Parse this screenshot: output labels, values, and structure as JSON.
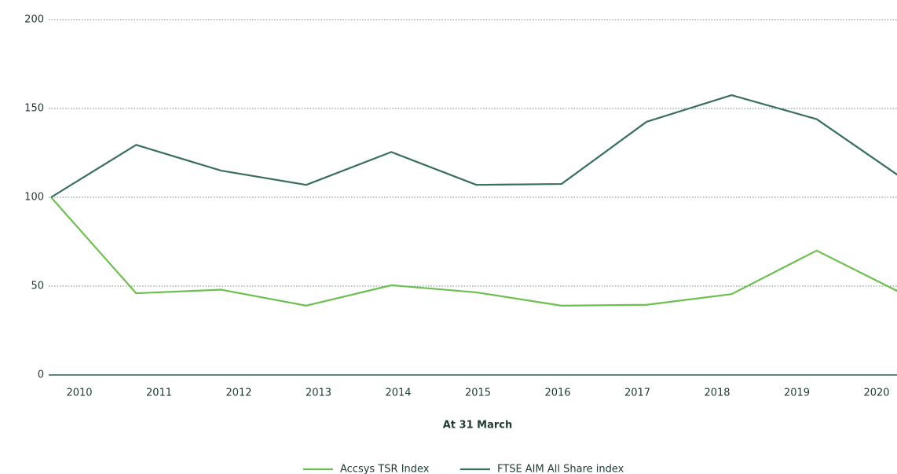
{
  "chart_data": {
    "type": "line",
    "x_label": "At 31 March",
    "categories": [
      "2010",
      "2011",
      "2012",
      "2013",
      "2014",
      "2015",
      "2016",
      "2017",
      "2018",
      "2019",
      "2020"
    ],
    "series": [
      {
        "name": "Accsys TSR Index",
        "color": "#6cbf4f",
        "values": [
          100,
          46,
          48,
          39,
          50.5,
          46.5,
          39,
          39.5,
          45.5,
          70,
          46
        ]
      },
      {
        "name": "FTSE AIM All Share index",
        "color": "#3a6e5e",
        "values": [
          100,
          129.5,
          115,
          107,
          125.5,
          107,
          107.5,
          142.5,
          157.5,
          144,
          111
        ]
      }
    ],
    "ylim": [
      0,
      200
    ],
    "yticks": [
      0,
      50,
      100,
      150,
      200
    ],
    "grid": true,
    "legend": "bottom"
  }
}
